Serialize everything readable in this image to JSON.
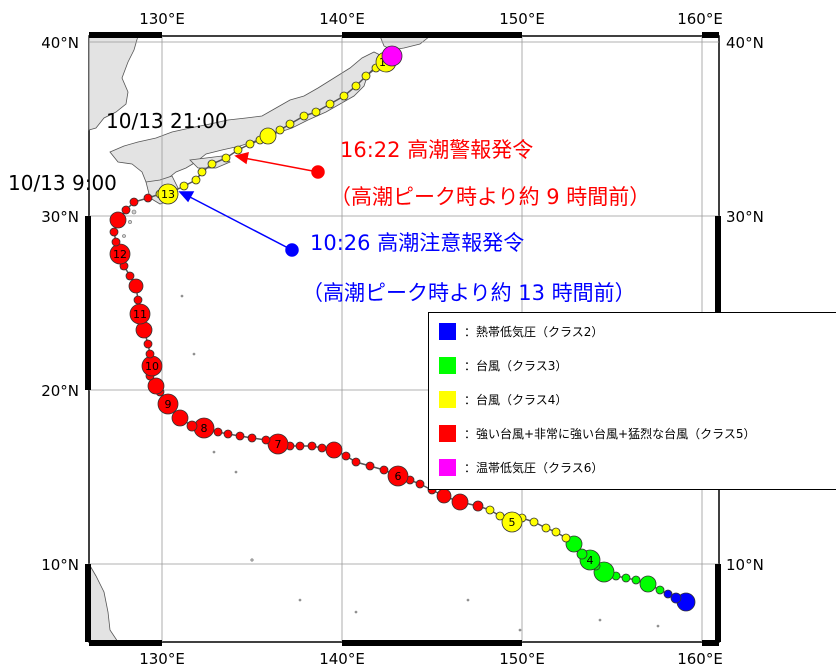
{
  "axes": {
    "lon_labels": [
      "130°E",
      "140°E",
      "150°E",
      "160°E"
    ],
    "lat_labels": [
      "40°N",
      "30°N",
      "20°N",
      "10°N"
    ]
  },
  "annotations": {
    "time_2100": "10/13 21:00",
    "time_0900": "10/13 9:00",
    "warning_title": "16:22 高潮警報発令",
    "warning_sub": "（高潮ピーク時より約 9 時間前）",
    "advisory_title": "10:26 高潮注意報発令",
    "advisory_sub": "（高潮ピーク時より約 13 時間前）"
  },
  "day_markers": [
    "4",
    "5",
    "6",
    "7",
    "8",
    "9",
    "10",
    "11",
    "12",
    "13",
    "14"
  ],
  "legend": [
    {
      "color": "#0000ff",
      "label": "：熱帯低気圧（クラス2）"
    },
    {
      "color": "#00ff00",
      "label": "：台風（クラス3）"
    },
    {
      "color": "#ffff00",
      "label": "：台風（クラス4）"
    },
    {
      "color": "#ff0000",
      "label": "：強い台風+非常に強い台風+猛烈な台風（クラス5）"
    },
    {
      "color": "#ff00ff",
      "label": "：温帯低気圧（クラス6）"
    }
  ],
  "colors": {
    "warning": "#ff0000",
    "advisory": "#0000ff",
    "class2": "#0000ff",
    "class3": "#00ff00",
    "class4": "#ffff00",
    "class5": "#ff0000",
    "class6": "#ff00ff"
  }
}
